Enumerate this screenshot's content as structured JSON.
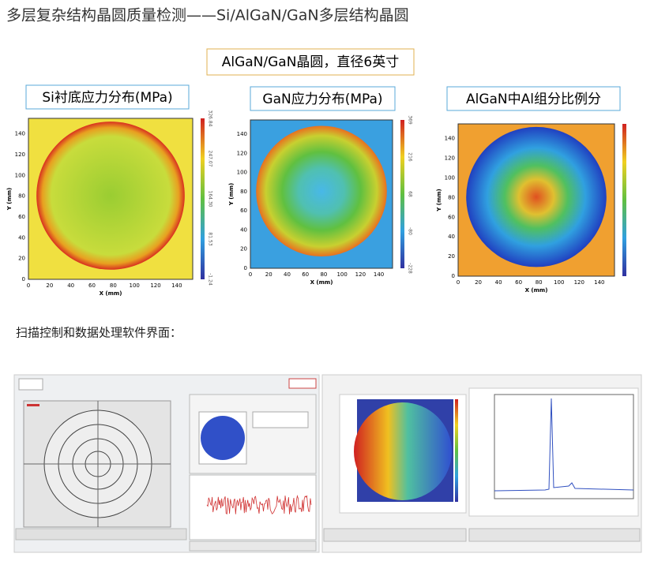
{
  "header": {
    "title": "多层复杂结构晶圆质量检测——Si/AlGaN/GaN多层结构晶圆"
  },
  "subtitle": "AlGaN/GaN晶圆，直径6英寸",
  "maps": [
    {
      "label": "Si衬底应力分布(MPa)",
      "x_label": "X (mm)",
      "y_label": "Y (mm)",
      "xticks": [
        0,
        20,
        40,
        60,
        80,
        100,
        120,
        140
      ],
      "yticks": [
        0,
        20,
        40,
        60,
        80,
        100,
        120,
        140
      ],
      "colorbar": [
        "-1.24",
        "81.53",
        "164.30",
        "247.07",
        "326.84"
      ]
    },
    {
      "label": "GaN应力分布(MPa)",
      "x_label": "X (mm)",
      "y_label": "Y (mm)",
      "xticks": [
        0,
        20,
        40,
        60,
        80,
        100,
        120,
        140
      ],
      "yticks": [
        0,
        20,
        40,
        60,
        80,
        100,
        120,
        140
      ],
      "colorbar": [
        "-228",
        "-80",
        "68",
        "216",
        "369"
      ]
    },
    {
      "label": "AlGaN中Al组分比例分",
      "x_label": "X (mm)",
      "y_label": "Y (mm)",
      "xticks": [
        0,
        20,
        40,
        60,
        80,
        100,
        120,
        140
      ],
      "yticks": [
        0,
        20,
        40,
        60,
        80,
        100,
        120,
        140
      ],
      "colorbar": []
    }
  ],
  "section": "扫描控制和数据处理软件界面："
}
